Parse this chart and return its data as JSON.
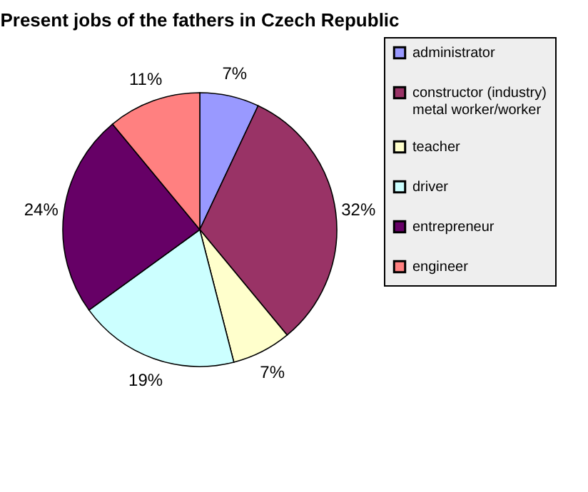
{
  "chart_data": {
    "type": "pie",
    "title": "Present jobs of the fathers in Czech Republic",
    "categories": [
      "administrator",
      "constructor (industry) metal worker/worker",
      "teacher",
      "driver",
      "entrepreneur",
      "engineer"
    ],
    "values": [
      7,
      32,
      7,
      19,
      24,
      11
    ],
    "value_labels": [
      "7%",
      "32%",
      "7%",
      "19%",
      "24%",
      "11%"
    ],
    "colors": [
      "#9999ff",
      "#993366",
      "#ffffcc",
      "#ccffff",
      "#660066",
      "#ff8080"
    ],
    "legend": "right"
  }
}
